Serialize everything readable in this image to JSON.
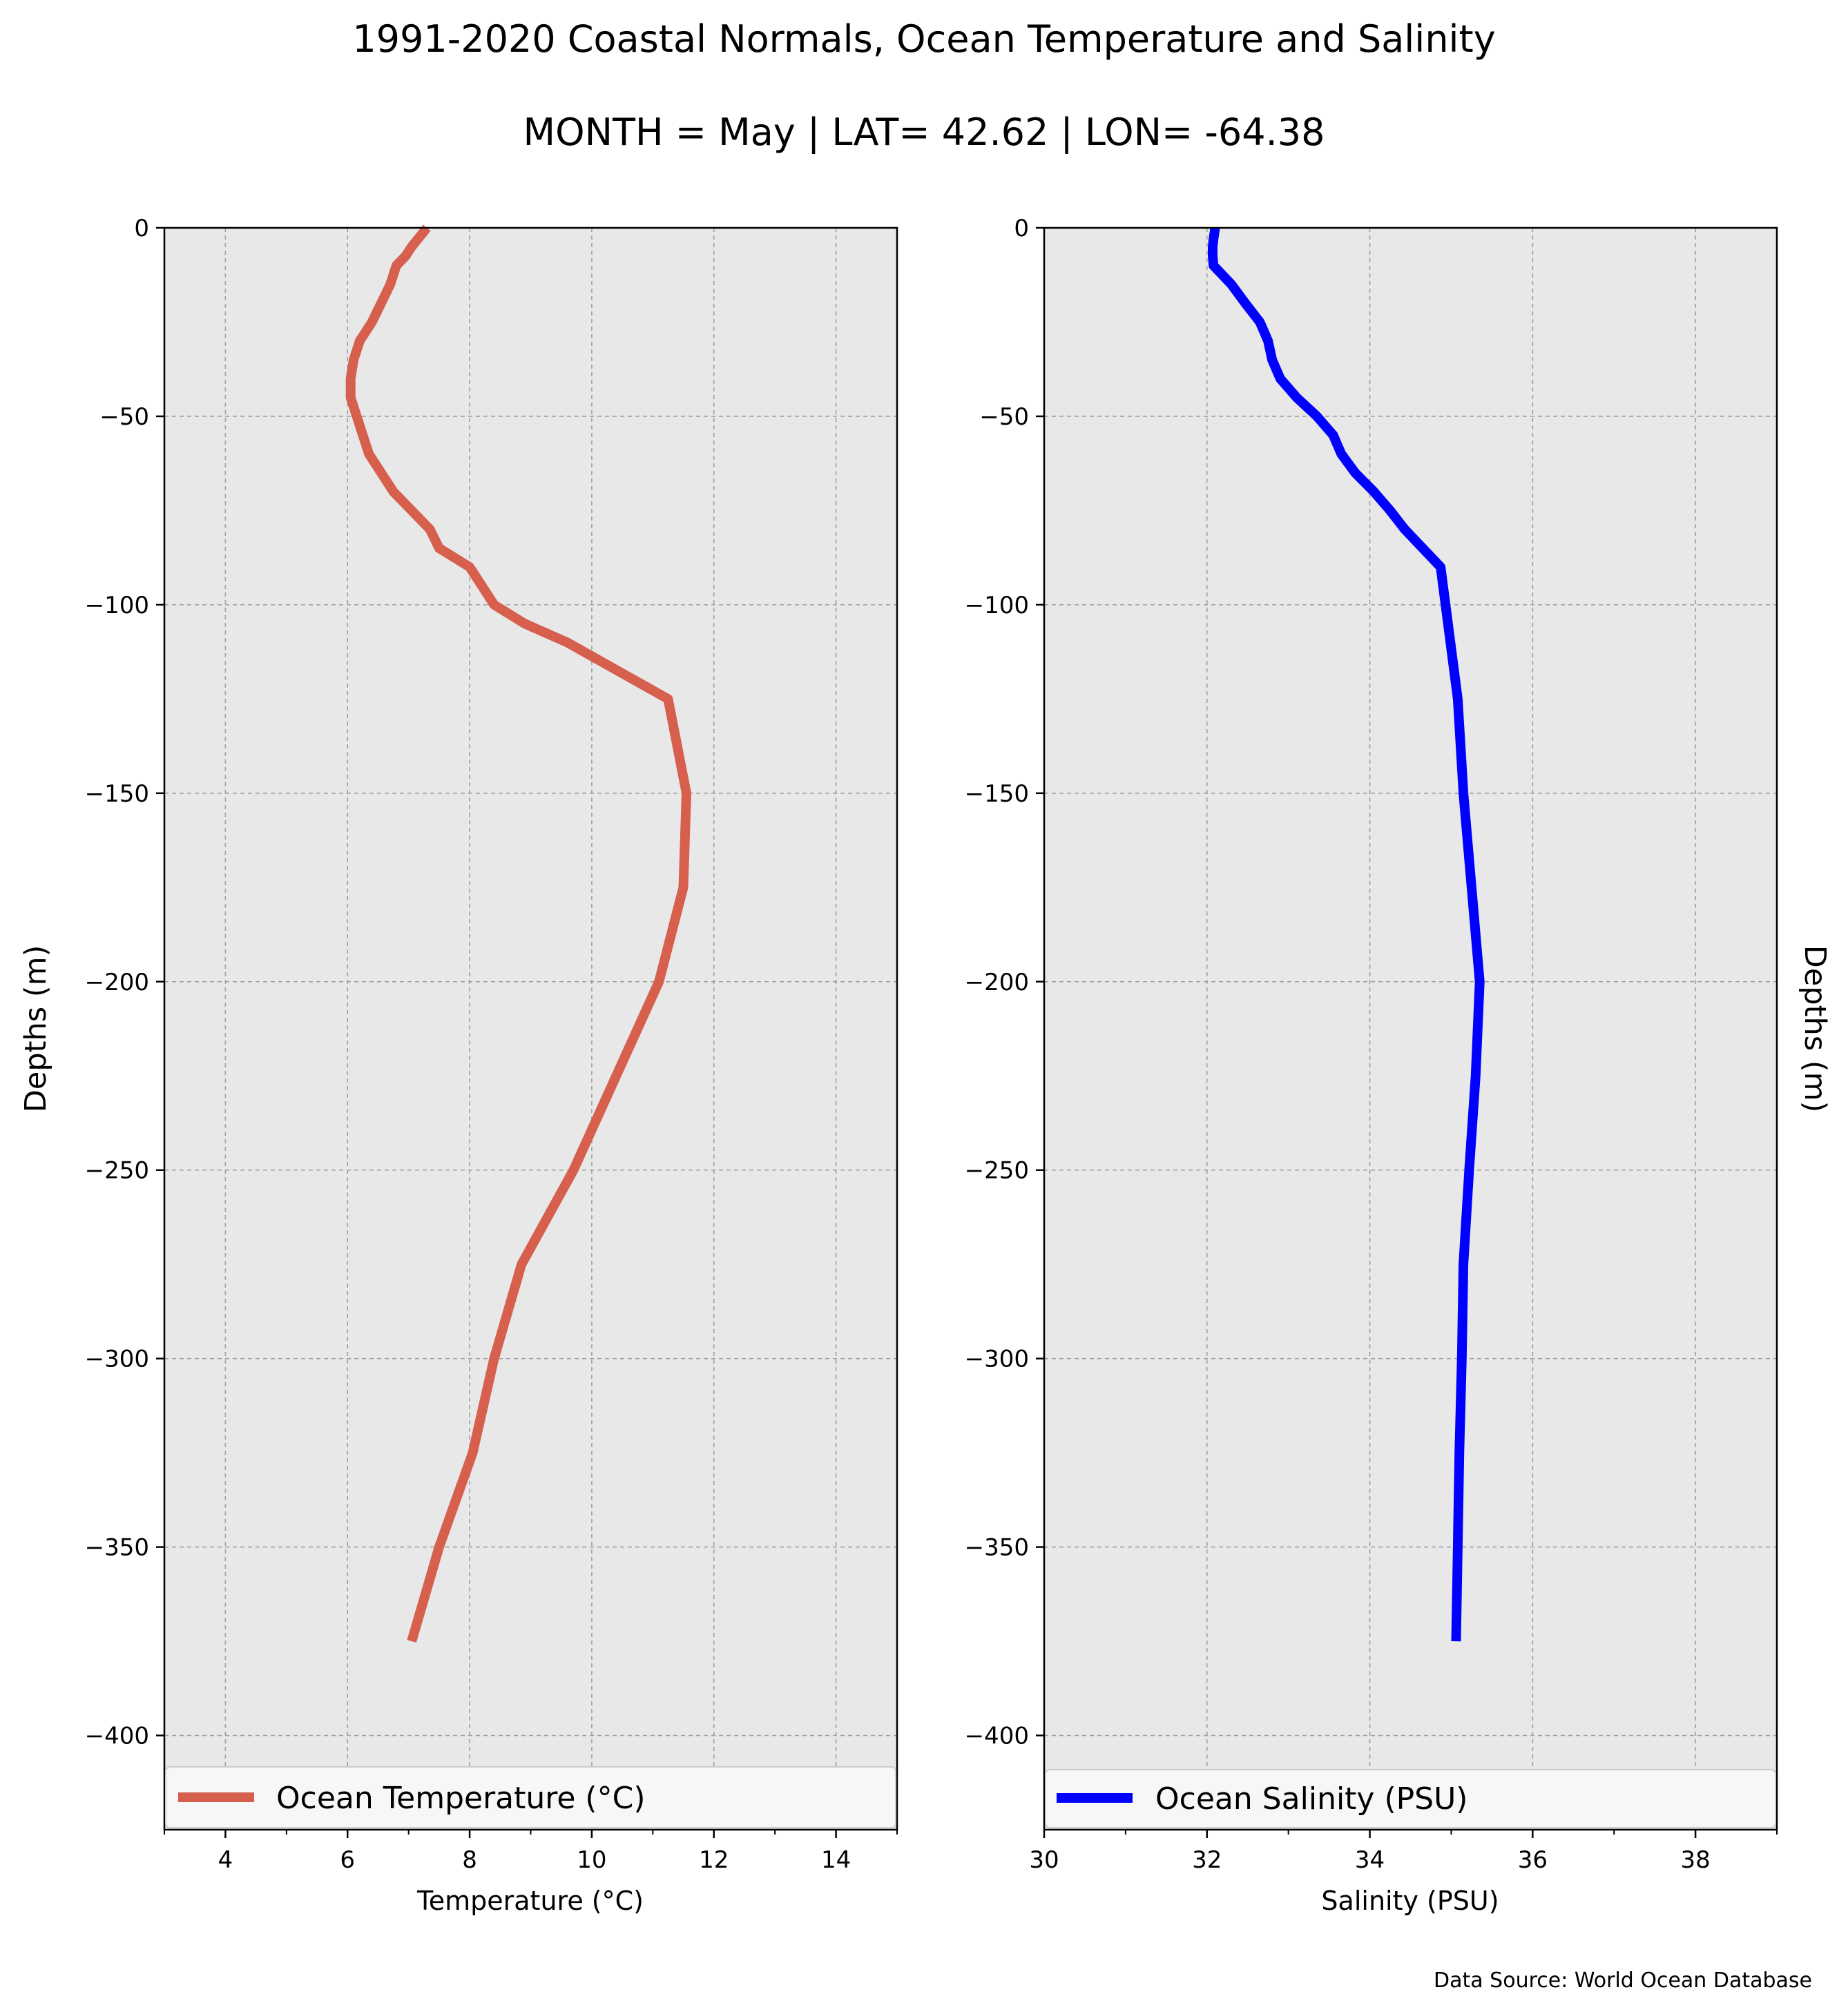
{
  "title": "1991-2020 Coastal Normals, Ocean Temperature and Salinity",
  "subtitle": "MONTH = May | LAT= 42.62 | LON= -64.38",
  "source_note": "Data Source: World Ocean Database",
  "colors": {
    "background_plot": "#e8e8e8",
    "temperature_line": "#d65f4e",
    "salinity_line": "#0000ff"
  },
  "chart_data": [
    {
      "type": "line",
      "xlabel": "Temperature (°C)",
      "ylabel": "Depths (m)",
      "xlim": [
        3,
        15
      ],
      "ylim": [
        -425,
        0
      ],
      "xticks": [
        4,
        6,
        8,
        10,
        12,
        14
      ],
      "xticks_minor": [
        3,
        5,
        7,
        9,
        11,
        13,
        15
      ],
      "yticks": [
        0,
        -50,
        -100,
        -150,
        -200,
        -250,
        -300,
        -350,
        -400
      ],
      "grid": true,
      "legend_position": "bottom",
      "series": [
        {
          "name": "Ocean Temperature (°C)",
          "x": [
            7.3,
            7.05,
            6.95,
            6.8,
            6.7,
            6.55,
            6.4,
            6.2,
            6.1,
            6.05,
            6.05,
            6.15,
            6.35,
            6.75,
            7.05,
            7.35,
            7.5,
            8.0,
            8.2,
            8.4,
            8.9,
            9.6,
            10.7,
            11.25,
            11.55,
            11.5,
            11.1,
            10.4,
            9.7,
            8.85,
            8.4,
            8.05,
            7.5,
            7.05
          ],
          "y": [
            0,
            -5,
            -7.5,
            -10,
            -15,
            -20,
            -25,
            -30,
            -35,
            -40,
            -45,
            -50,
            -60,
            -70,
            -75,
            -80,
            -85,
            -90,
            -95,
            -100,
            -105,
            -110,
            -120,
            -125,
            -150,
            -175,
            -200,
            -225,
            -250,
            -275,
            -300,
            -325,
            -350,
            -375
          ]
        }
      ]
    },
    {
      "type": "line",
      "xlabel": "Salinity (PSU)",
      "ylabel": "Depths (m)",
      "xlim": [
        30,
        39
      ],
      "ylim": [
        -425,
        0
      ],
      "xticks": [
        30,
        32,
        34,
        36,
        38
      ],
      "xticks_minor": [
        31,
        33,
        35,
        37,
        39
      ],
      "yticks": [
        0,
        -50,
        -100,
        -150,
        -200,
        -250,
        -300,
        -350,
        -400
      ],
      "grid": true,
      "legend_position": "bottom",
      "series": [
        {
          "name": "Ocean Salinity (PSU)",
          "x": [
            32.1,
            32.08,
            32.07,
            32.07,
            32.08,
            32.3,
            32.47,
            32.65,
            32.75,
            32.8,
            32.9,
            33.1,
            33.35,
            33.55,
            33.65,
            33.82,
            34.05,
            34.25,
            34.43,
            34.65,
            34.87,
            35.08,
            35.15,
            35.25,
            35.35,
            35.3,
            35.22,
            35.15,
            35.13,
            35.1,
            35.08,
            35.06
          ],
          "y": [
            0,
            -3,
            -5,
            -7.5,
            -10,
            -15,
            -20,
            -25,
            -30,
            -35,
            -40,
            -45,
            -50,
            -55,
            -60,
            -65,
            -70,
            -75,
            -80,
            -85,
            -90,
            -125,
            -150,
            -175,
            -200,
            -225,
            -250,
            -275,
            -300,
            -325,
            -350,
            -375
          ]
        }
      ]
    }
  ]
}
